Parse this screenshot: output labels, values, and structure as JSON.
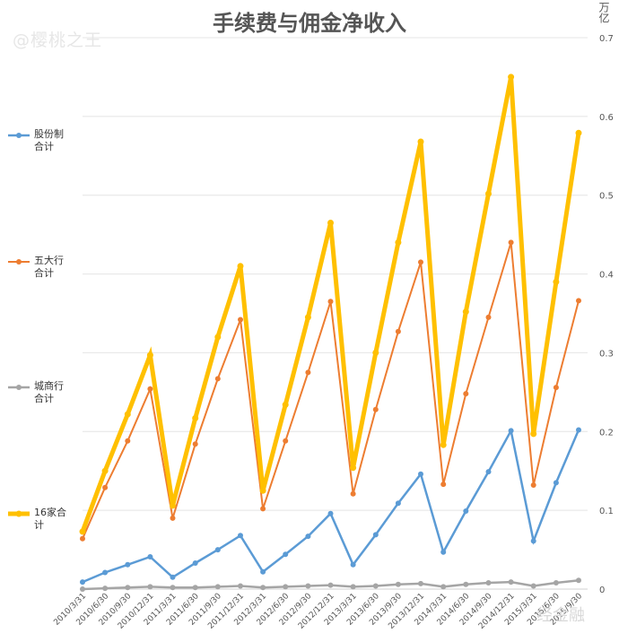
{
  "chart_data": {
    "type": "line",
    "title": "手续费与佣金净收入",
    "unit_label": "万亿",
    "ylim": [
      0,
      0.7
    ],
    "y_ticks": [
      "0",
      "0.1",
      "0.2",
      "0.3",
      "0.4",
      "0.5",
      "0.6",
      "0.7"
    ],
    "grid": true,
    "legend_position": "left",
    "categories": [
      "2010/3/31",
      "2010/6/30",
      "2010/9/30",
      "2010/12/31",
      "2011/3/31",
      "2011/6/30",
      "2011/9/30",
      "2011/12/31",
      "2012/3/31",
      "2012/6/30",
      "2012/9/30",
      "2012/12/31",
      "2013/3/31",
      "2013/6/30",
      "2013/9/30",
      "2013/12/31",
      "2014/3/31",
      "2014/6/30",
      "2014/9/30",
      "2014/12/31",
      "2015/3/31",
      "2015/6/30",
      "2015/9/30"
    ],
    "series": [
      {
        "name": "股份制合计",
        "legend_lines": [
          "股份制",
          "合计"
        ],
        "color": "#5b9bd5",
        "width": 2.5,
        "values": [
          0.009,
          0.021,
          0.031,
          0.041,
          0.015,
          0.033,
          0.05,
          0.068,
          0.022,
          0.044,
          0.067,
          0.096,
          0.031,
          0.069,
          0.109,
          0.146,
          0.047,
          0.099,
          0.149,
          0.201,
          0.061,
          0.135,
          0.202
        ]
      },
      {
        "name": "五大行合计",
        "legend_lines": [
          "五大行",
          "合计"
        ],
        "color": "#ed7d31",
        "width": 2,
        "values": [
          0.064,
          0.129,
          0.188,
          0.254,
          0.09,
          0.184,
          0.267,
          0.342,
          0.102,
          0.188,
          0.275,
          0.365,
          0.121,
          0.228,
          0.327,
          0.415,
          0.133,
          0.248,
          0.345,
          0.44,
          0.132,
          0.256,
          0.366
        ]
      },
      {
        "name": "城商行合计",
        "legend_lines": [
          "城商行",
          "合计"
        ],
        "color": "#a5a5a5",
        "width": 2.5,
        "values": [
          0.0,
          0.001,
          0.002,
          0.003,
          0.002,
          0.002,
          0.003,
          0.004,
          0.002,
          0.003,
          0.004,
          0.005,
          0.003,
          0.004,
          0.006,
          0.007,
          0.003,
          0.006,
          0.008,
          0.009,
          0.004,
          0.008,
          0.011
        ]
      },
      {
        "name": "16家合计",
        "legend_lines": [
          "16家合",
          "计"
        ],
        "color": "#ffc000",
        "width": 5,
        "values": [
          0.073,
          0.15,
          0.222,
          0.297,
          0.106,
          0.217,
          0.32,
          0.41,
          0.125,
          0.234,
          0.345,
          0.465,
          0.154,
          0.3,
          0.44,
          0.568,
          0.183,
          0.352,
          0.502,
          0.65,
          0.197,
          0.39,
          0.579
        ]
      }
    ]
  },
  "watermarks": {
    "left": "@樱桃之王",
    "right": "经金融"
  }
}
